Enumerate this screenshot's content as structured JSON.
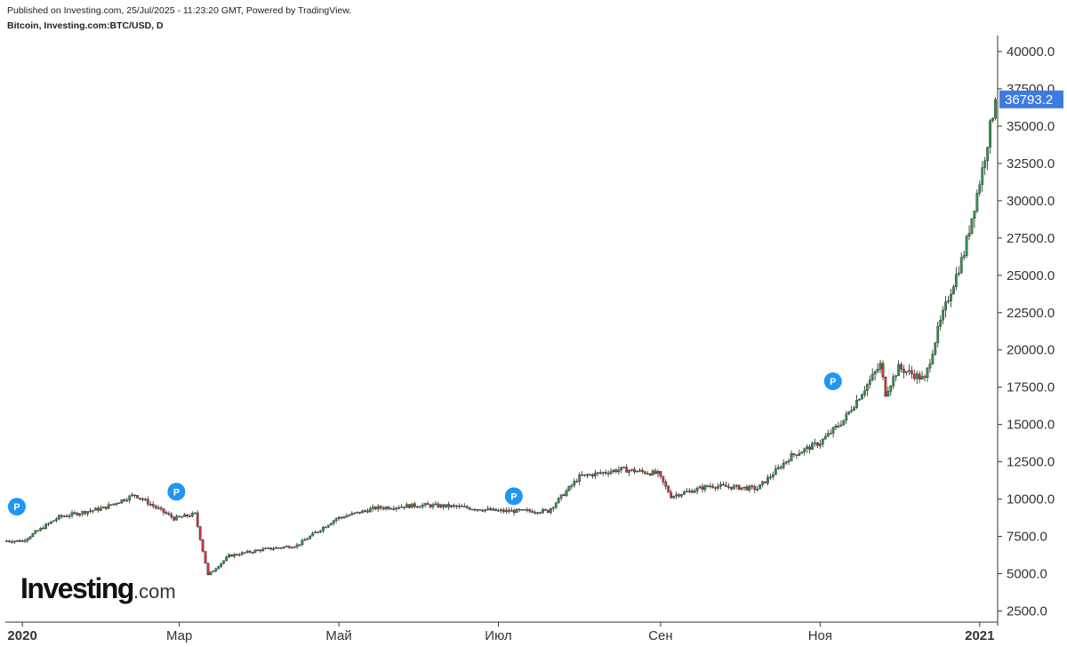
{
  "header": {
    "published": "Published on Investing.com, 25/Jul/2025 - 11:23:20 GMT, Powered by TradingView.",
    "symbol": "Bitcoin, Investing.com:BTC/USD, D"
  },
  "logo": {
    "main": "Investing",
    "suffix": ".com"
  },
  "colors": {
    "up": "#2e9a4c",
    "down": "#d6333f",
    "last_price_bg": "#3d7be0",
    "marker": "#2196f3",
    "axis": "#333333"
  },
  "chart_data": {
    "type": "candlestick",
    "title": "Bitcoin, Investing.com:BTC/USD, D",
    "timeframe": "D",
    "x_labels": [
      "2020",
      "Мар",
      "Май",
      "Июл",
      "Сен",
      "Ноя",
      "2021"
    ],
    "y_ticks": [
      "2500.0",
      "5000.0",
      "7500.0",
      "10000.0",
      "12500.0",
      "15000.0",
      "17500.0",
      "20000.0",
      "22500.0",
      "25000.0",
      "27500.0",
      "30000.0",
      "32500.0",
      "35000.0",
      "37500.0",
      "40000.0"
    ],
    "y_range": [
      2500,
      40000
    ],
    "last_price": 36793.2,
    "last_price_label": "36793.2",
    "date_range": [
      "2019-12-26",
      "2021-01-07"
    ],
    "markers": [
      {
        "label": "P",
        "date": "2019-12-27",
        "price": 8900
      },
      {
        "label": "P",
        "date": "2020-02-26",
        "price": 9900
      },
      {
        "label": "P",
        "date": "2020-07-04",
        "price": 9600
      },
      {
        "label": "P",
        "date": "2020-11-03",
        "price": 17300
      }
    ],
    "key_closes": [
      {
        "date": "2019-12-26",
        "close": 7200
      },
      {
        "date": "2020-01-01",
        "close": 7200
      },
      {
        "date": "2020-01-15",
        "close": 8800
      },
      {
        "date": "2020-02-01",
        "close": 9400
      },
      {
        "date": "2020-02-13",
        "close": 10300
      },
      {
        "date": "2020-02-28",
        "close": 8700
      },
      {
        "date": "2020-03-07",
        "close": 9000
      },
      {
        "date": "2020-03-12",
        "close": 4900
      },
      {
        "date": "2020-03-20",
        "close": 6200
      },
      {
        "date": "2020-04-01",
        "close": 6600
      },
      {
        "date": "2020-04-15",
        "close": 6900
      },
      {
        "date": "2020-04-30",
        "close": 8700
      },
      {
        "date": "2020-05-15",
        "close": 9400
      },
      {
        "date": "2020-06-01",
        "close": 9600
      },
      {
        "date": "2020-06-15",
        "close": 9500
      },
      {
        "date": "2020-07-01",
        "close": 9200
      },
      {
        "date": "2020-07-20",
        "close": 9200
      },
      {
        "date": "2020-08-01",
        "close": 11500
      },
      {
        "date": "2020-08-17",
        "close": 12000
      },
      {
        "date": "2020-08-31",
        "close": 11700
      },
      {
        "date": "2020-09-05",
        "close": 10200
      },
      {
        "date": "2020-09-20",
        "close": 10900
      },
      {
        "date": "2020-10-08",
        "close": 10700
      },
      {
        "date": "2020-10-21",
        "close": 12900
      },
      {
        "date": "2020-11-01",
        "close": 13800
      },
      {
        "date": "2020-11-10",
        "close": 15300
      },
      {
        "date": "2020-11-24",
        "close": 19000
      },
      {
        "date": "2020-11-26",
        "close": 17100
      },
      {
        "date": "2020-12-01",
        "close": 18800
      },
      {
        "date": "2020-12-11",
        "close": 18000
      },
      {
        "date": "2020-12-16",
        "close": 21300
      },
      {
        "date": "2020-12-20",
        "close": 23500
      },
      {
        "date": "2020-12-26",
        "close": 26500
      },
      {
        "date": "2021-01-02",
        "close": 32100
      },
      {
        "date": "2021-01-07",
        "close": 36793.2
      }
    ]
  }
}
